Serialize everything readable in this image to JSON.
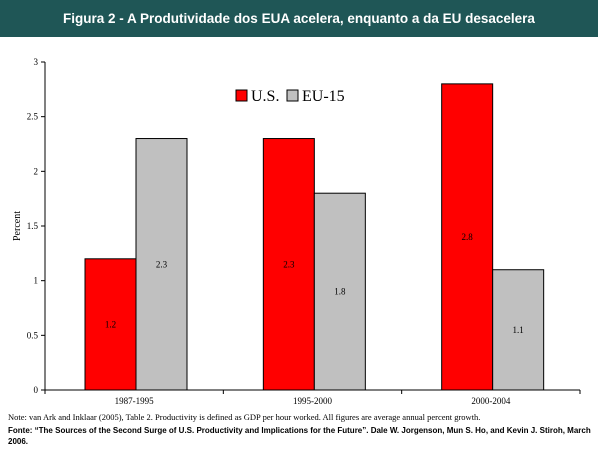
{
  "header": {
    "title": "Figura 2 - A Produtividade dos EUA acelera, enquanto a da EU desacelera"
  },
  "chart_data": {
    "type": "bar",
    "title": "",
    "xlabel": "",
    "ylabel": "Percent",
    "ylim": [
      0,
      3
    ],
    "yticks": [
      "0",
      "0.5",
      "1",
      "1.5",
      "2",
      "2.5",
      "3"
    ],
    "categories": [
      "1987-1995",
      "1995-2000",
      "2000-2004"
    ],
    "series": [
      {
        "name": "U.S.",
        "color": "#ff0000",
        "values": [
          1.2,
          2.3,
          2.8
        ],
        "labels": [
          "1.2",
          "2.3",
          "2.8"
        ]
      },
      {
        "name": "EU-15",
        "color": "#c0c0c0",
        "values": [
          2.3,
          1.8,
          1.1
        ],
        "labels": [
          "2.3",
          "1.8",
          "1.1"
        ]
      }
    ],
    "grid": false,
    "legend": "top"
  },
  "note": "Note: van Ark and Inklaar (2005), Table 2.  Productivity is defined as GDP per hour worked.  All figures are average annual percent growth.",
  "source": "Fonte: “The Sources of the Second Surge of U.S. Productivity and Implications for the Future”. Dale W. Jorgenson, Mun S. Ho, and Kevin J. Stiroh, March 2006."
}
